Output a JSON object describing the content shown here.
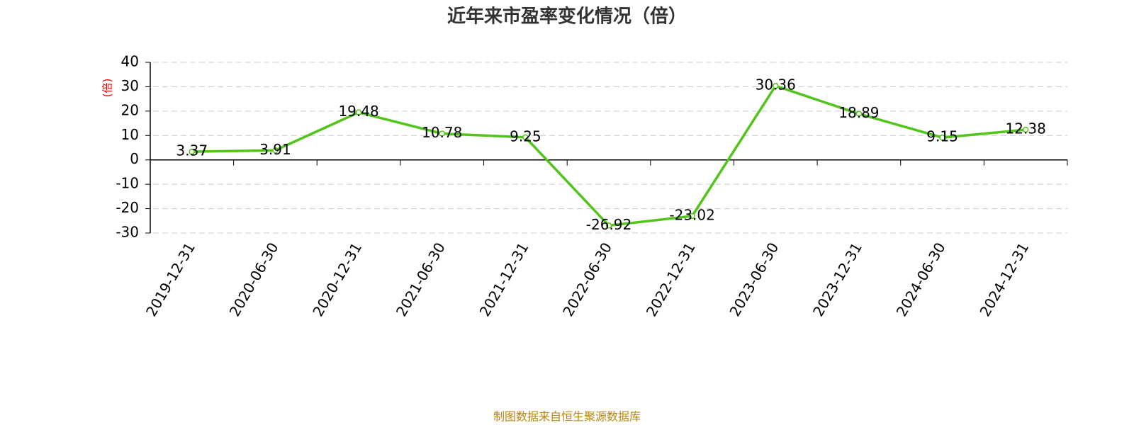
{
  "chart_data": {
    "type": "line",
    "title": "近年来市盈率变化情况（倍）",
    "y_label": "(倍)",
    "source": "制图数据来自恒生聚源数据库",
    "categories": [
      "2019-12-31",
      "2020-06-30",
      "2020-12-31",
      "2021-06-30",
      "2021-12-31",
      "2022-06-30",
      "2022-12-31",
      "2023-06-30",
      "2023-12-31",
      "2024-06-30",
      "2024-12-31"
    ],
    "values": [
      3.37,
      3.91,
      19.48,
      10.78,
      9.25,
      -26.92,
      -23.02,
      30.36,
      18.89,
      9.15,
      12.38
    ],
    "color": "#52c41a",
    "ylim": [
      -30,
      40
    ],
    "yticks": [
      40,
      30,
      20,
      10,
      0,
      -10,
      -20,
      -30
    ],
    "grid": true
  }
}
